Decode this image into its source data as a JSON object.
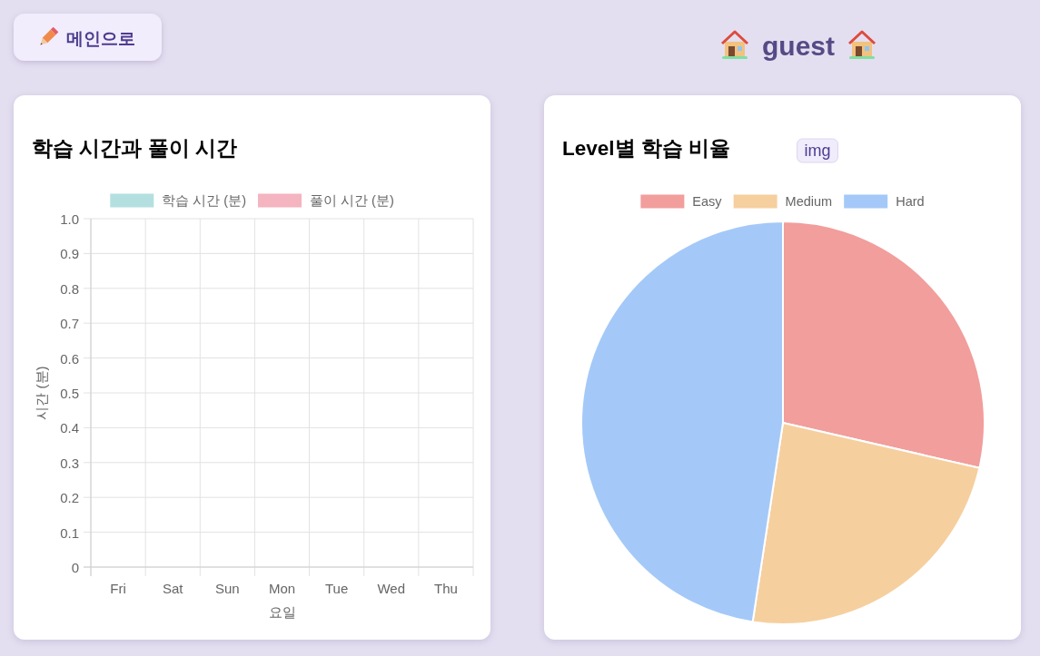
{
  "chart_data": [
    {
      "type": "other",
      "title": "guest",
      "annotations": [
        "메인으로"
      ]
    },
    {
      "type": "bar",
      "title": "학습 시간과 풀이 시간",
      "categories": [
        "Fri",
        "Sat",
        "Sun",
        "Mon",
        "Tue",
        "Wed",
        "Thu"
      ],
      "series": [
        {
          "name": "학습 시간 (분)",
          "color": "#b4dfe0",
          "values": [
            null,
            null,
            null,
            null,
            null,
            null,
            null
          ]
        },
        {
          "name": "풀이 시간 (분)",
          "color": "#f4b4c0",
          "values": [
            null,
            null,
            null,
            null,
            null,
            null,
            null
          ]
        }
      ],
      "xlabel": "요일",
      "ylabel": "시간 (분)",
      "ylim": [
        0,
        1
      ],
      "yticks": [
        0,
        0.1,
        0.2,
        0.3,
        0.4,
        0.5,
        0.6,
        0.7,
        0.8,
        0.9,
        {
          "value": 1,
          "label": "1.0"
        }
      ],
      "grid": true,
      "legend": "top"
    },
    {
      "type": "pie",
      "title": "Level별 학습 비율",
      "categories": [
        "Easy",
        "Medium",
        "Hard"
      ],
      "values": [
        28.6,
        23.8,
        47.6
      ],
      "colors": [
        "#f19e9c",
        "#f6cf9f",
        "#a4c9f8"
      ],
      "legend": "top",
      "annotations": [
        "img"
      ]
    }
  ]
}
